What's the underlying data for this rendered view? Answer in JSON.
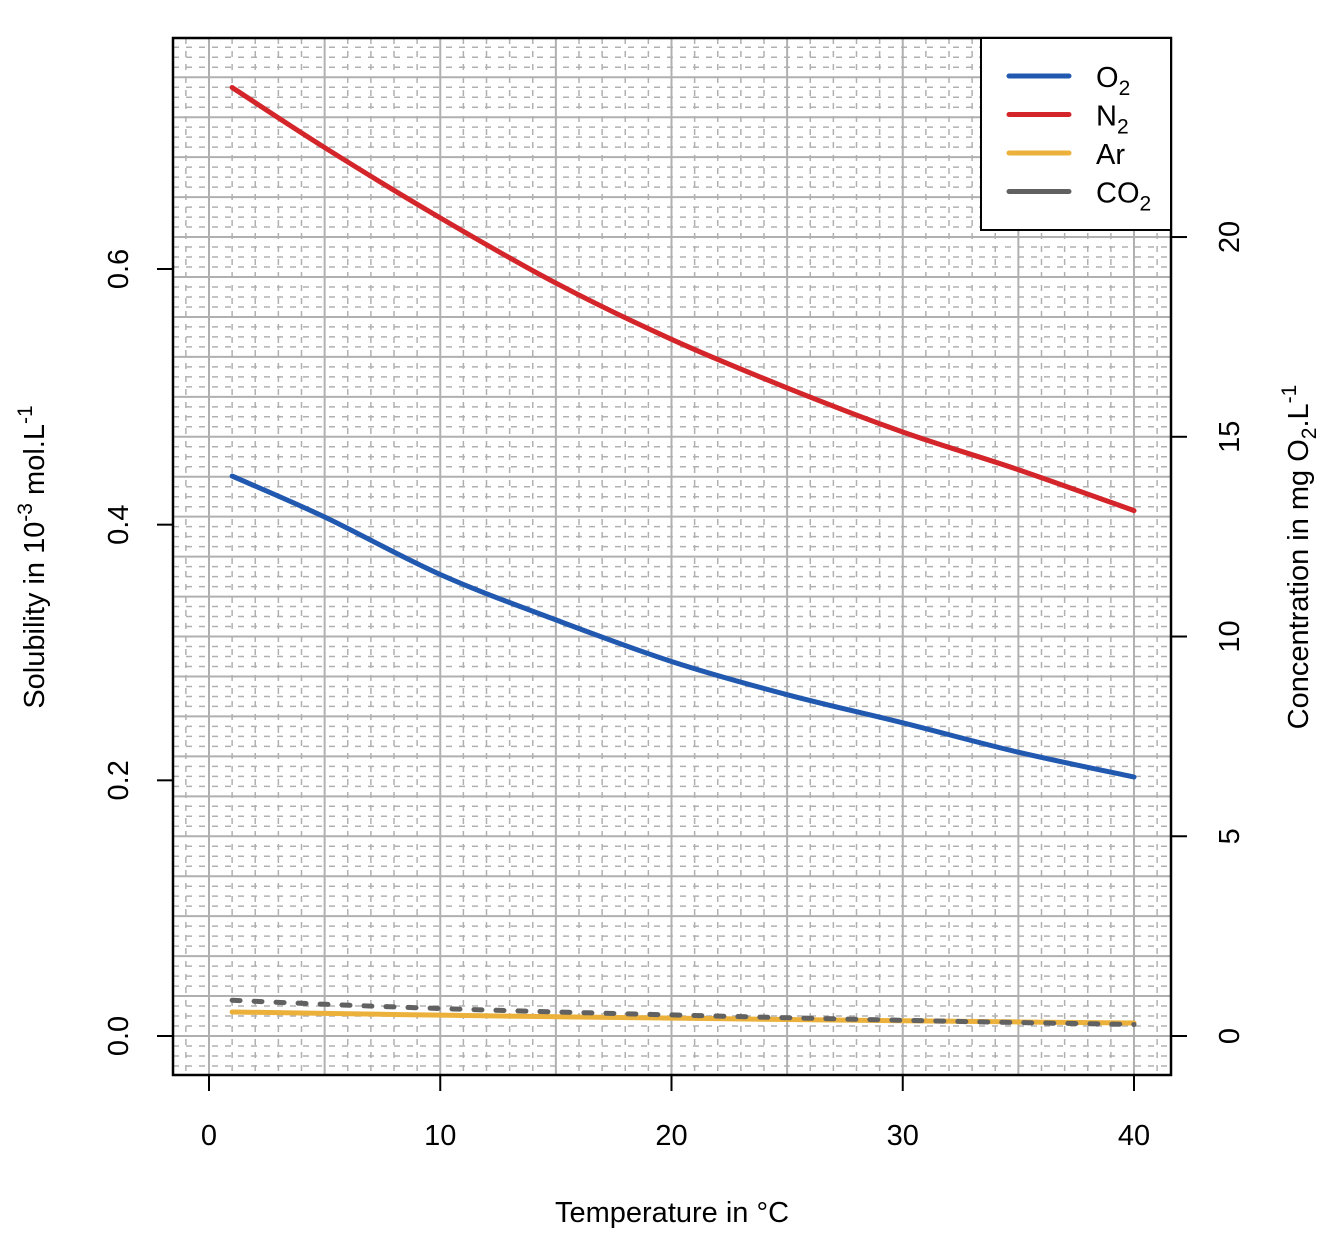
{
  "chart_data": {
    "type": "line",
    "xlabel": "Temperature in °C",
    "ylabel": {
      "pre": "Solubility in 10",
      "sup1": "-3",
      "mid": " mol.L",
      "sup2": "-1"
    },
    "y2label": {
      "pre": "Concentration in mg O",
      "sub": "2",
      "mid": ".L",
      "sup": "-1"
    },
    "xlim": [
      -1.6,
      41.6
    ],
    "ylim": [
      -0.05,
      0.78
    ],
    "xticks": [
      "0",
      "10",
      "20",
      "30",
      "40"
    ],
    "xtick_values": [
      0,
      10,
      20,
      30,
      40
    ],
    "yticks": [
      "0.0",
      "0.2",
      "0.4",
      "0.6"
    ],
    "ytick_values": [
      0,
      0.2,
      0.4,
      0.6
    ],
    "y2ticks": [
      "0",
      "5",
      "10",
      "15",
      "20"
    ],
    "y2tick_values": [
      0,
      5,
      10,
      15,
      20
    ],
    "y2_units_per_y": 32,
    "grid": true,
    "legend_position": "top-right",
    "x": [
      1,
      5,
      10,
      15,
      20,
      25,
      30,
      35,
      40
    ],
    "series": [
      {
        "name": "O",
        "sub": "2",
        "color": "#2158b0",
        "dashed": false,
        "values": [
          0.438,
          0.406,
          0.361,
          0.3255,
          0.293,
          0.267,
          0.245,
          0.222,
          0.2026
        ]
      },
      {
        "name": "N",
        "sub": "2",
        "color": "#d3252a",
        "dashed": false,
        "values": [
          0.742,
          0.695,
          0.64,
          0.589,
          0.545,
          0.507,
          0.4725,
          0.443,
          0.411
        ]
      },
      {
        "name": "Ar",
        "sub": "",
        "color": "#ebb13a",
        "dashed": false,
        "values": [
          0.0188,
          0.0177,
          0.0163,
          0.0151,
          0.014,
          0.0129,
          0.0119,
          0.011,
          0.0102
        ]
      },
      {
        "name": "CO",
        "sub": "2",
        "color": "#616161",
        "dashed": true,
        "values": [
          0.028,
          0.0248,
          0.0215,
          0.0188,
          0.0165,
          0.0143,
          0.0123,
          0.0105,
          0.009
        ]
      }
    ]
  }
}
